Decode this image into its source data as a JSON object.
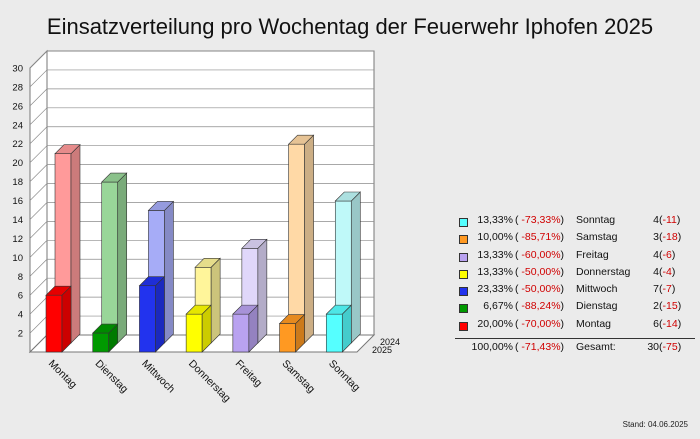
{
  "title": "Einsatzverteilung pro Wochentag der Feuerwehr Iphofen 2025",
  "stand": "Stand: 04.06.2025",
  "chart_data": {
    "type": "bar",
    "categories": [
      "Montag",
      "Dienstag",
      "Mittwoch",
      "Donnerstag",
      "Freitag",
      "Samstag",
      "Sonntag"
    ],
    "series": [
      {
        "name": "2025",
        "values": [
          6,
          2,
          7,
          4,
          4,
          3,
          4
        ]
      },
      {
        "name": "2024",
        "values": [
          20,
          17,
          14,
          8,
          10,
          21,
          15
        ]
      }
    ],
    "colors_front": [
      "#ff0000",
      "#009900",
      "#2233ee",
      "#ffff00",
      "#b9a2f0",
      "#ff9922",
      "#55ffff"
    ],
    "colors_back": [
      "#ff9a9a",
      "#99d699",
      "#a6acf7",
      "#fff59a",
      "#e0d7fa",
      "#ffd9a6",
      "#bff9f9"
    ],
    "yticks": [
      2,
      4,
      6,
      8,
      10,
      12,
      14,
      16,
      18,
      20,
      22,
      24,
      26,
      28,
      30
    ],
    "ylim": [
      0,
      30
    ],
    "depth_labels": [
      "2024",
      "2025"
    ]
  },
  "legend": {
    "rows": [
      {
        "pct": "13,33%",
        "chg_open": "(",
        "chg": "-73,33%",
        "chg_close": ")",
        "day": "Sonntag",
        "count": "4",
        "diff_open": "(",
        "diff": "-11",
        "diff_close": ")",
        "color": "#55ffff"
      },
      {
        "pct": "10,00%",
        "chg_open": "(",
        "chg": "-85,71%",
        "chg_close": ")",
        "day": "Samstag",
        "count": "3",
        "diff_open": "(",
        "diff": "-18",
        "diff_close": ")",
        "color": "#ff9922"
      },
      {
        "pct": "13,33%",
        "chg_open": "(",
        "chg": "-60,00%",
        "chg_close": ")",
        "day": "Freitag",
        "count": "4",
        "diff_open": "(",
        "diff": "-6",
        "diff_close": ")",
        "color": "#b9a2f0"
      },
      {
        "pct": "13,33%",
        "chg_open": "(",
        "chg": "-50,00%",
        "chg_close": ")",
        "day": "Donnerstag",
        "count": "4",
        "diff_open": "(",
        "diff": "-4",
        "diff_close": ")",
        "color": "#ffff00"
      },
      {
        "pct": "23,33%",
        "chg_open": "(",
        "chg": "-50,00%",
        "chg_close": ")",
        "day": "Mittwoch",
        "count": "7",
        "diff_open": "(",
        "diff": "-7",
        "diff_close": ")",
        "color": "#2233ee"
      },
      {
        "pct": "6,67%",
        "chg_open": "(",
        "chg": "-88,24%",
        "chg_close": ")",
        "day": "Dienstag",
        "count": "2",
        "diff_open": "(",
        "diff": "-15",
        "diff_close": ")",
        "color": "#009900"
      },
      {
        "pct": "20,00%",
        "chg_open": "(",
        "chg": "-70,00%",
        "chg_close": ")",
        "day": "Montag",
        "count": "6",
        "diff_open": "(",
        "diff": "-14",
        "diff_close": ")",
        "color": "#ff0000"
      }
    ],
    "total": {
      "pct": "100,00%",
      "chg_open": "(",
      "chg": "-71,43%",
      "chg_close": ")",
      "day": "Gesamt:",
      "count": "30",
      "diff_open": "(",
      "diff": "-75",
      "diff_close": ")"
    }
  }
}
